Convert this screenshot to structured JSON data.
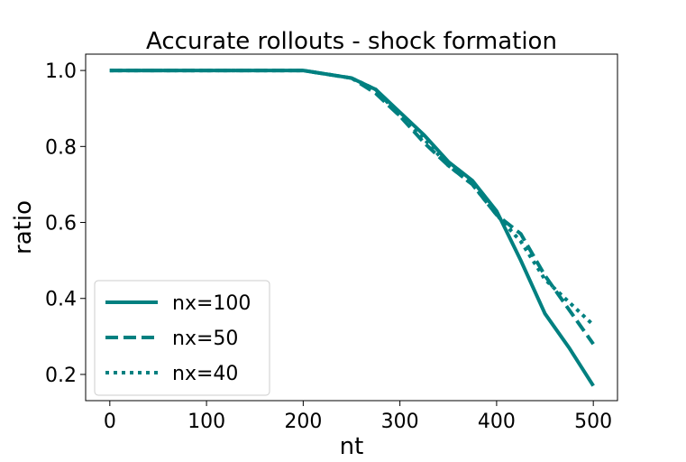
{
  "chart_data": {
    "type": "line",
    "title": "Accurate rollouts - shock formation",
    "x_label": "nt",
    "y_label": "ratio",
    "x": [
      0,
      25,
      50,
      75,
      100,
      125,
      150,
      175,
      200,
      225,
      250,
      275,
      300,
      325,
      350,
      375,
      400,
      425,
      450,
      475,
      500
    ],
    "series": [
      {
        "name": "nx=100",
        "color": "#008080",
        "dash": "solid",
        "values": [
          1.0,
          1.0,
          1.0,
          1.0,
          1.0,
          1.0,
          1.0,
          1.0,
          1.0,
          0.99,
          0.98,
          0.95,
          0.89,
          0.83,
          0.76,
          0.71,
          0.63,
          0.5,
          0.36,
          0.27,
          0.17
        ]
      },
      {
        "name": "nx=50",
        "color": "#008080",
        "dash": "dashed",
        "values": [
          1.0,
          1.0,
          1.0,
          1.0,
          1.0,
          1.0,
          1.0,
          1.0,
          1.0,
          0.99,
          0.98,
          0.94,
          0.88,
          0.81,
          0.75,
          0.7,
          0.62,
          0.57,
          0.46,
          0.37,
          0.28
        ]
      },
      {
        "name": "nx=40",
        "color": "#008080",
        "dash": "dotted",
        "values": [
          1.0,
          1.0,
          1.0,
          1.0,
          1.0,
          1.0,
          1.0,
          1.0,
          1.0,
          0.99,
          0.98,
          0.95,
          0.88,
          0.82,
          0.75,
          0.7,
          0.62,
          0.55,
          0.45,
          0.39,
          0.33
        ]
      }
    ],
    "xlim": [
      -25,
      525
    ],
    "ylim": [
      0.131,
      1.043
    ],
    "xticks": [
      0,
      100,
      200,
      300,
      400,
      500
    ],
    "yticks": [
      {
        "value": 0.2,
        "label": "0.2"
      },
      {
        "value": 0.4,
        "label": "0.4"
      },
      {
        "value": 0.6,
        "label": "0.6"
      },
      {
        "value": 0.8,
        "label": "0.8"
      },
      {
        "value": 1.0,
        "label": "1.0"
      }
    ],
    "legend": "lower left",
    "grid": false
  }
}
